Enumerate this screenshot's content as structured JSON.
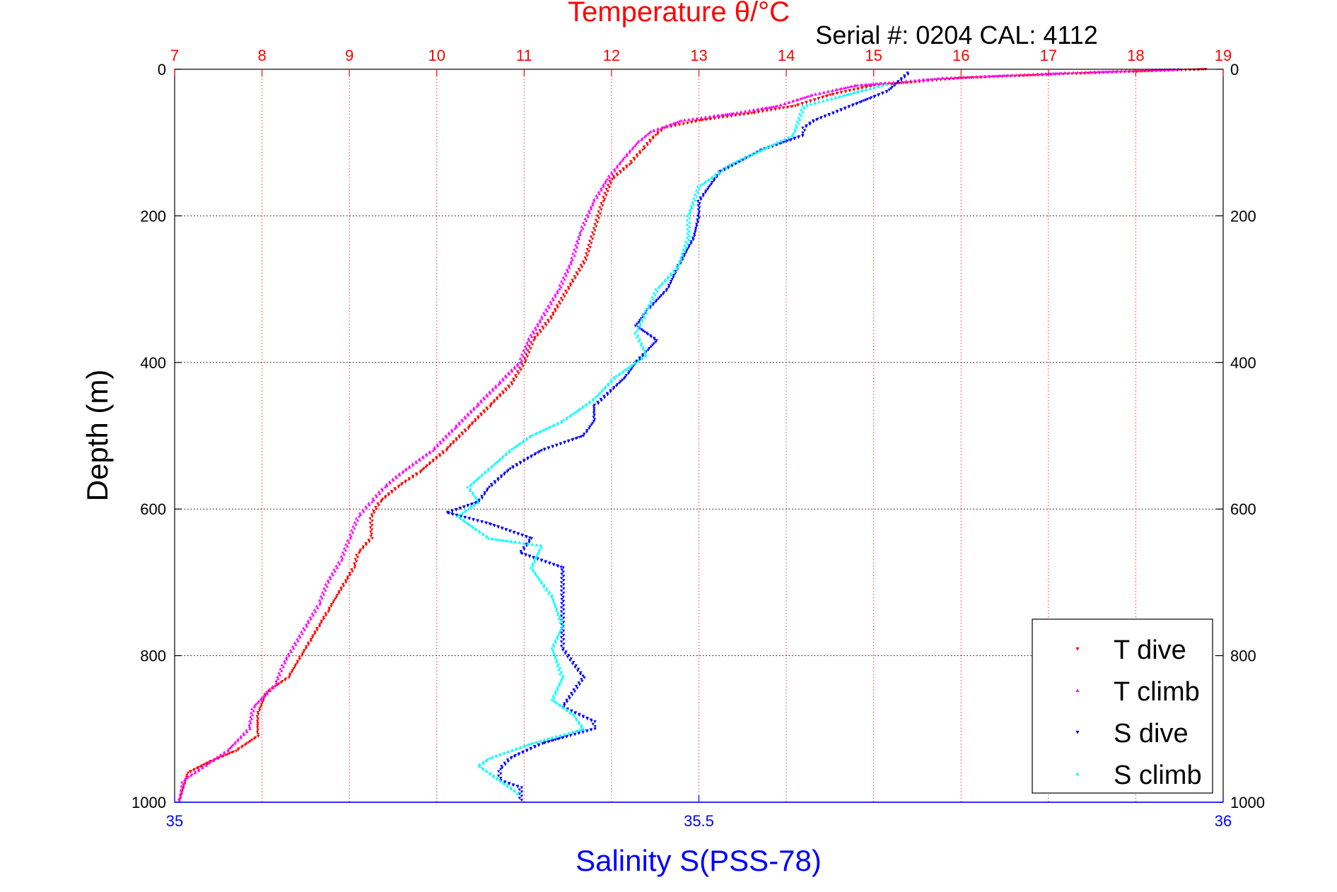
{
  "chart_data": {
    "type": "scatter",
    "title": "Temperature θ/°C",
    "subtitle": "Serial #: 0204  CAL: 4112",
    "ylabel": "Depth (m)",
    "xlabel": "Salinity S(PSS-78)",
    "temperature_axis": {
      "position": "top",
      "range": [
        7,
        19
      ],
      "ticks": [
        7,
        8,
        9,
        10,
        11,
        12,
        13,
        14,
        15,
        16,
        17,
        18,
        19
      ],
      "color": "#ff0000"
    },
    "salinity_axis": {
      "position": "bottom",
      "range": [
        35,
        36
      ],
      "ticks": [
        35,
        35.5,
        36
      ],
      "color": "#0000ff"
    },
    "depth_axis": {
      "range": [
        0,
        1000
      ],
      "reversed": true,
      "ticks": [
        0,
        200,
        400,
        600,
        800,
        1000
      ]
    },
    "grid": true,
    "legend": {
      "placement": "bottom-right"
    },
    "series": [
      {
        "name": "T dive",
        "variable": "temperature",
        "color": "#ff0000",
        "marker": "triangle-down",
        "points": [
          [
            18.8,
            0
          ],
          [
            17.5,
            5
          ],
          [
            16.0,
            12
          ],
          [
            15.0,
            22
          ],
          [
            14.5,
            35
          ],
          [
            14.1,
            50
          ],
          [
            13.6,
            60
          ],
          [
            13.0,
            70
          ],
          [
            12.6,
            80
          ],
          [
            12.5,
            90
          ],
          [
            12.35,
            110
          ],
          [
            12.2,
            130
          ],
          [
            12.0,
            150
          ],
          [
            11.9,
            180
          ],
          [
            11.8,
            220
          ],
          [
            11.7,
            260
          ],
          [
            11.5,
            300
          ],
          [
            11.3,
            340
          ],
          [
            11.1,
            370
          ],
          [
            11.0,
            400
          ],
          [
            10.85,
            430
          ],
          [
            10.6,
            460
          ],
          [
            10.35,
            490
          ],
          [
            10.1,
            520
          ],
          [
            9.8,
            550
          ],
          [
            9.55,
            570
          ],
          [
            9.35,
            590
          ],
          [
            9.25,
            610
          ],
          [
            9.25,
            640
          ],
          [
            9.1,
            660
          ],
          [
            9.05,
            680
          ],
          [
            8.95,
            700
          ],
          [
            8.75,
            740
          ],
          [
            8.65,
            760
          ],
          [
            8.55,
            780
          ],
          [
            8.45,
            800
          ],
          [
            8.3,
            830
          ],
          [
            8.05,
            850
          ],
          [
            7.95,
            880
          ],
          [
            7.95,
            910
          ],
          [
            7.7,
            930
          ],
          [
            7.4,
            945
          ],
          [
            7.15,
            960
          ],
          [
            7.1,
            980
          ],
          [
            7.05,
            1000
          ]
        ]
      },
      {
        "name": "T climb",
        "variable": "temperature",
        "color": "#ff00ff",
        "marker": "triangle-up",
        "points": [
          [
            18.5,
            0
          ],
          [
            17.2,
            5
          ],
          [
            15.8,
            12
          ],
          [
            14.8,
            22
          ],
          [
            14.3,
            35
          ],
          [
            13.9,
            50
          ],
          [
            13.4,
            60
          ],
          [
            12.8,
            70
          ],
          [
            12.45,
            85
          ],
          [
            12.3,
            100
          ],
          [
            12.15,
            120
          ],
          [
            11.95,
            150
          ],
          [
            11.8,
            180
          ],
          [
            11.65,
            220
          ],
          [
            11.55,
            260
          ],
          [
            11.4,
            300
          ],
          [
            11.2,
            340
          ],
          [
            11.05,
            370
          ],
          [
            10.95,
            400
          ],
          [
            10.7,
            430
          ],
          [
            10.45,
            460
          ],
          [
            10.2,
            490
          ],
          [
            9.95,
            520
          ],
          [
            9.6,
            550
          ],
          [
            9.4,
            570
          ],
          [
            9.25,
            590
          ],
          [
            9.1,
            610
          ],
          [
            9.0,
            640
          ],
          [
            8.9,
            670
          ],
          [
            8.75,
            700
          ],
          [
            8.65,
            730
          ],
          [
            8.5,
            760
          ],
          [
            8.4,
            780
          ],
          [
            8.25,
            810
          ],
          [
            8.15,
            840
          ],
          [
            7.9,
            870
          ],
          [
            7.85,
            900
          ],
          [
            7.6,
            930
          ],
          [
            7.35,
            950
          ],
          [
            7.1,
            970
          ],
          [
            7.05,
            1000
          ]
        ]
      },
      {
        "name": "S dive",
        "variable": "salinity",
        "color": "#0000ff",
        "marker": "triangle-down",
        "points": [
          [
            35.7,
            5
          ],
          [
            35.68,
            30
          ],
          [
            35.61,
            70
          ],
          [
            35.6,
            80
          ],
          [
            35.6,
            90
          ],
          [
            35.56,
            110
          ],
          [
            35.52,
            140
          ],
          [
            35.5,
            180
          ],
          [
            35.5,
            200
          ],
          [
            35.495,
            230
          ],
          [
            35.48,
            270
          ],
          [
            35.47,
            300
          ],
          [
            35.45,
            330
          ],
          [
            35.44,
            350
          ],
          [
            35.46,
            370
          ],
          [
            35.44,
            400
          ],
          [
            35.43,
            420
          ],
          [
            35.4,
            460
          ],
          [
            35.4,
            480
          ],
          [
            35.39,
            500
          ],
          [
            35.35,
            520
          ],
          [
            35.32,
            545
          ],
          [
            35.3,
            570
          ],
          [
            35.29,
            590
          ],
          [
            35.26,
            605
          ],
          [
            35.3,
            620
          ],
          [
            35.34,
            640
          ],
          [
            35.33,
            660
          ],
          [
            35.37,
            680
          ],
          [
            35.37,
            720
          ],
          [
            35.37,
            760
          ],
          [
            35.37,
            790
          ],
          [
            35.39,
            830
          ],
          [
            35.37,
            870
          ],
          [
            35.4,
            890
          ],
          [
            35.4,
            900
          ],
          [
            35.35,
            920
          ],
          [
            35.32,
            940
          ],
          [
            35.31,
            955
          ],
          [
            35.31,
            970
          ],
          [
            35.33,
            980
          ],
          [
            35.33,
            1000
          ]
        ]
      },
      {
        "name": "S climb",
        "variable": "salinity",
        "color": "#00ffff",
        "marker": "triangle-up",
        "points": [
          [
            35.68,
            20
          ],
          [
            35.6,
            50
          ],
          [
            35.59,
            90
          ],
          [
            35.53,
            130
          ],
          [
            35.5,
            160
          ],
          [
            35.49,
            200
          ],
          [
            35.49,
            230
          ],
          [
            35.48,
            270
          ],
          [
            35.46,
            300
          ],
          [
            35.45,
            330
          ],
          [
            35.44,
            360
          ],
          [
            35.45,
            390
          ],
          [
            35.42,
            420
          ],
          [
            35.4,
            450
          ],
          [
            35.37,
            480
          ],
          [
            35.34,
            500
          ],
          [
            35.32,
            520
          ],
          [
            35.3,
            545
          ],
          [
            35.28,
            570
          ],
          [
            35.29,
            590
          ],
          [
            35.27,
            610
          ],
          [
            35.3,
            640
          ],
          [
            35.35,
            650
          ],
          [
            35.34,
            680
          ],
          [
            35.36,
            720
          ],
          [
            35.37,
            760
          ],
          [
            35.36,
            790
          ],
          [
            35.37,
            830
          ],
          [
            35.36,
            860
          ],
          [
            35.38,
            880
          ],
          [
            35.39,
            900
          ],
          [
            35.34,
            920
          ],
          [
            35.3,
            940
          ],
          [
            35.29,
            950
          ],
          [
            35.31,
            970
          ],
          [
            35.33,
            990
          ]
        ]
      }
    ]
  }
}
